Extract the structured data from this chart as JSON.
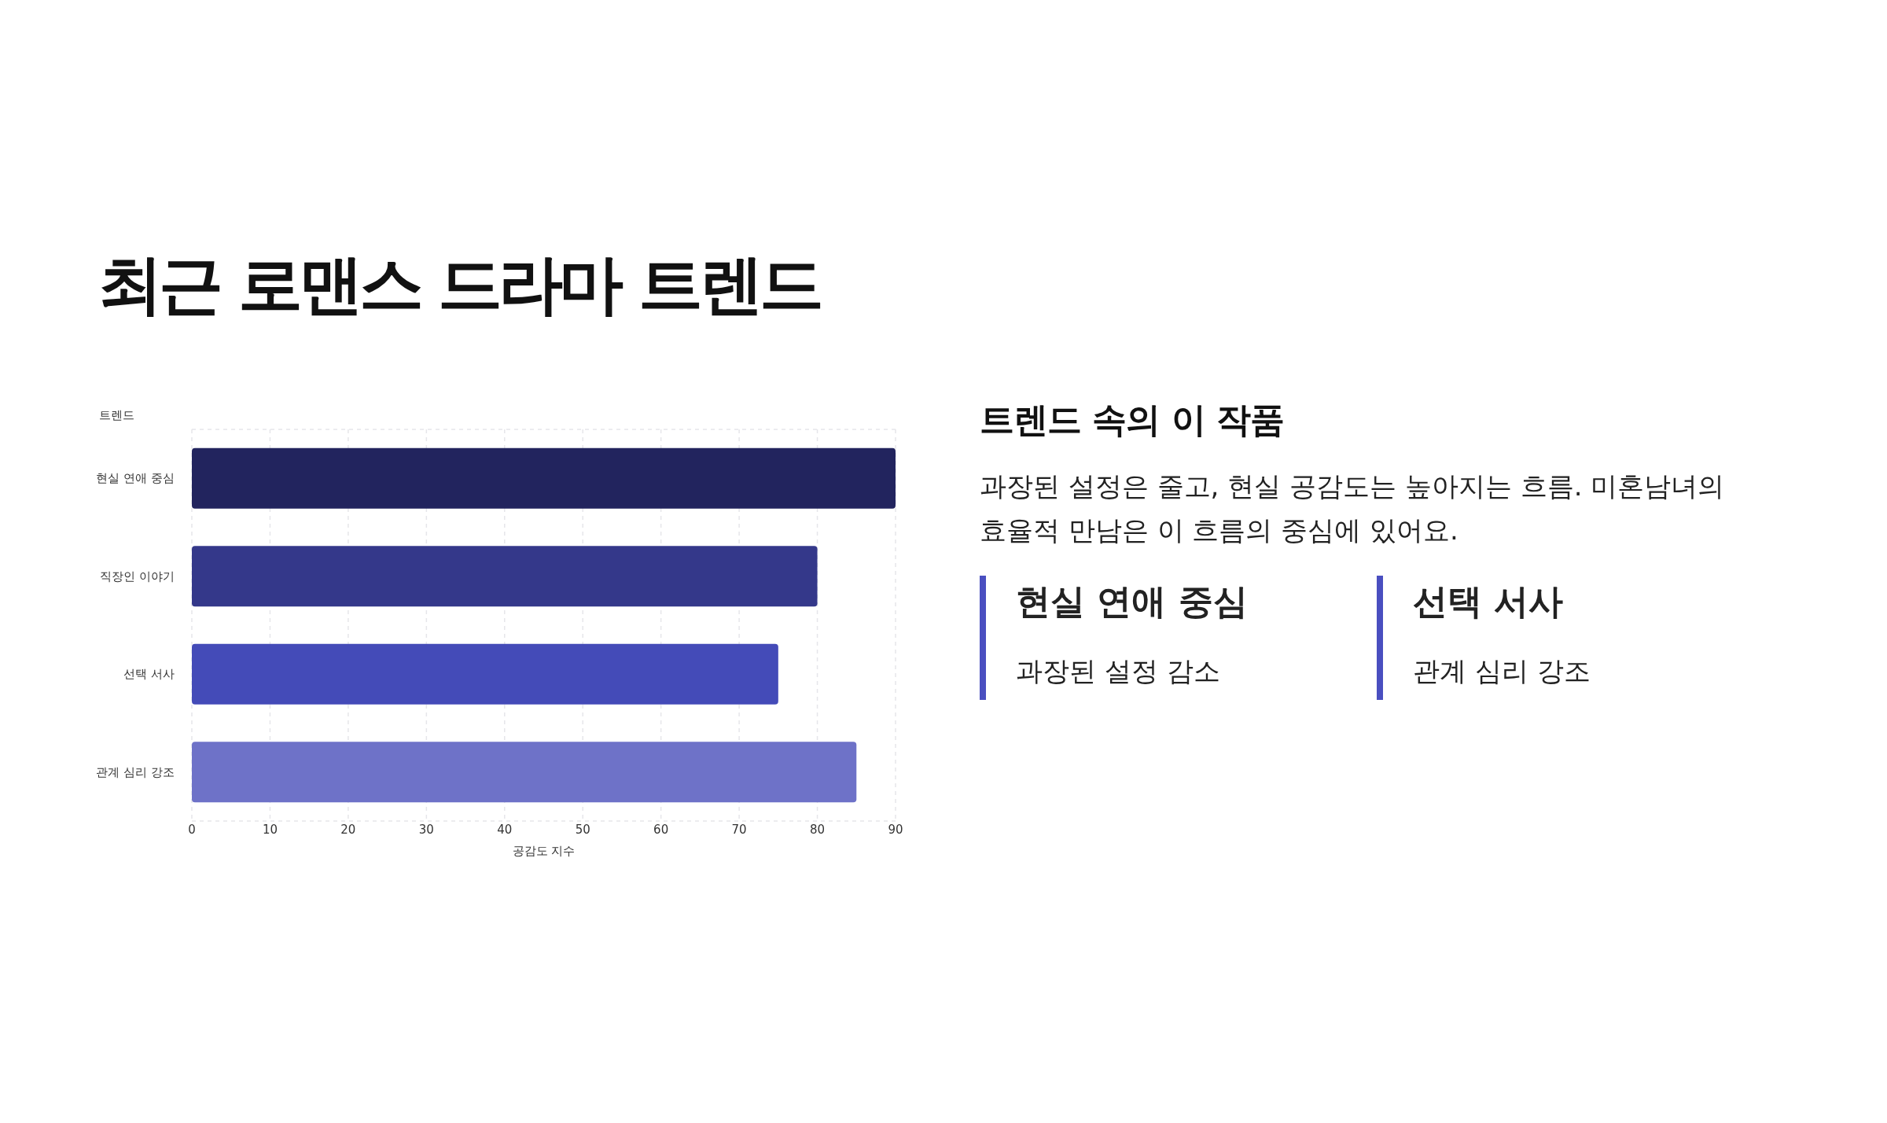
{
  "chart_data": [
    {
      "type": "bar",
      "orientation": "horizontal",
      "title": "최근 로맨스 드라마 트렌드",
      "ylabel": "트렌드",
      "xlabel": "공감도 지수",
      "categories": [
        "현실 연애 중심",
        "직장인 이야기",
        "선택 서사",
        "관계 심리 강조"
      ],
      "values": [
        90,
        80,
        75,
        85
      ],
      "colors": [
        "#22245e",
        "#34388a",
        "#444bb8",
        "#6e72c8"
      ],
      "xlim": [
        0,
        90
      ],
      "xticks": [
        0,
        10,
        20,
        30,
        40,
        50,
        60,
        70,
        80,
        90
      ],
      "grid": "x"
    },
    {
      "type": "other",
      "title": "트렌드 속의 이 작품",
      "subtitle": "과장된 설정은 줄고, 현실 공감도는 높아지는 흐름. 미혼남녀의 효율적 만남은 이 흐름의 중심에 있어요.",
      "annotations": [
        "현실 연애 중심",
        "과장된 설정 감소",
        "선택 서사",
        "관계 심리 강조"
      ]
    }
  ]
}
